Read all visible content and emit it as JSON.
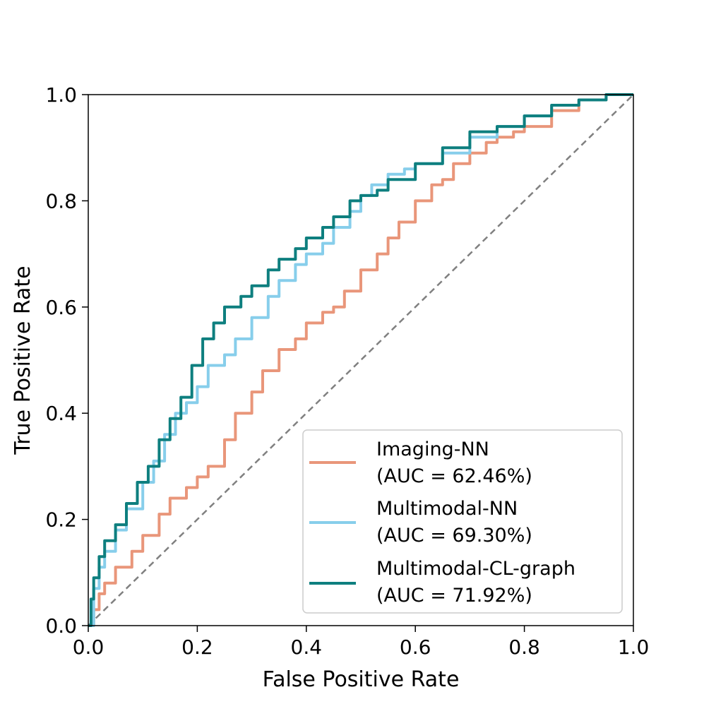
{
  "chart_data": {
    "type": "line",
    "title": "",
    "xlabel": "False Positive Rate",
    "ylabel": "True Positive Rate",
    "xlim": [
      0.0,
      1.0
    ],
    "ylim": [
      0.0,
      1.0
    ],
    "xticks": [
      "0.0",
      "0.2",
      "0.4",
      "0.6",
      "0.8",
      "1.0"
    ],
    "yticks": [
      "0.0",
      "0.2",
      "0.4",
      "0.6",
      "0.8",
      "1.0"
    ],
    "grid": false,
    "legend_position": "lower-right",
    "series": [
      {
        "name": "Imaging-NN",
        "auc_label": "(AUC = 62.46%)",
        "color": "#e9967a",
        "x": [
          0,
          0.01,
          0.02,
          0.03,
          0.05,
          0.08,
          0.1,
          0.13,
          0.15,
          0.18,
          0.2,
          0.22,
          0.25,
          0.27,
          0.3,
          0.32,
          0.35,
          0.38,
          0.4,
          0.43,
          0.45,
          0.47,
          0.5,
          0.53,
          0.55,
          0.57,
          0.6,
          0.63,
          0.65,
          0.67,
          0.7,
          0.73,
          0.75,
          0.78,
          0.8,
          0.85,
          0.9,
          0.95,
          1.0
        ],
        "y": [
          0,
          0.03,
          0.06,
          0.08,
          0.11,
          0.14,
          0.17,
          0.21,
          0.24,
          0.26,
          0.28,
          0.3,
          0.35,
          0.4,
          0.44,
          0.48,
          0.52,
          0.54,
          0.57,
          0.59,
          0.6,
          0.63,
          0.67,
          0.7,
          0.73,
          0.76,
          0.8,
          0.83,
          0.84,
          0.87,
          0.89,
          0.91,
          0.92,
          0.93,
          0.94,
          0.97,
          0.99,
          1.0,
          1.0
        ]
      },
      {
        "name": "Multimodal-NN",
        "auc_label": "(AUC = 69.30%)",
        "color": "#87ceeb",
        "x": [
          0,
          0.01,
          0.02,
          0.03,
          0.05,
          0.07,
          0.1,
          0.12,
          0.14,
          0.16,
          0.18,
          0.2,
          0.22,
          0.25,
          0.27,
          0.3,
          0.33,
          0.35,
          0.38,
          0.4,
          0.43,
          0.45,
          0.48,
          0.5,
          0.52,
          0.55,
          0.58,
          0.6,
          0.65,
          0.7,
          0.75,
          0.8,
          0.85,
          0.9,
          0.95,
          1.0
        ],
        "y": [
          0,
          0.07,
          0.11,
          0.14,
          0.18,
          0.22,
          0.27,
          0.31,
          0.36,
          0.4,
          0.42,
          0.45,
          0.49,
          0.51,
          0.54,
          0.58,
          0.62,
          0.65,
          0.68,
          0.7,
          0.72,
          0.75,
          0.78,
          0.81,
          0.83,
          0.85,
          0.86,
          0.87,
          0.89,
          0.92,
          0.94,
          0.96,
          0.98,
          0.99,
          1.0,
          1.0
        ]
      },
      {
        "name": "Multimodal-CL-graph",
        "auc_label": "(AUC = 71.92%)",
        "color": "#0e7f7f",
        "x": [
          0,
          0.005,
          0.01,
          0.02,
          0.03,
          0.05,
          0.07,
          0.09,
          0.11,
          0.13,
          0.15,
          0.17,
          0.19,
          0.21,
          0.23,
          0.25,
          0.28,
          0.3,
          0.33,
          0.35,
          0.38,
          0.4,
          0.43,
          0.45,
          0.48,
          0.5,
          0.53,
          0.55,
          0.6,
          0.65,
          0.7,
          0.75,
          0.8,
          0.85,
          0.9,
          0.95,
          1.0
        ],
        "y": [
          0,
          0.05,
          0.09,
          0.13,
          0.16,
          0.19,
          0.23,
          0.27,
          0.3,
          0.35,
          0.39,
          0.43,
          0.49,
          0.54,
          0.57,
          0.6,
          0.62,
          0.64,
          0.67,
          0.69,
          0.71,
          0.73,
          0.75,
          0.77,
          0.8,
          0.81,
          0.82,
          0.84,
          0.87,
          0.9,
          0.93,
          0.94,
          0.96,
          0.98,
          0.99,
          1.0,
          1.0
        ]
      }
    ],
    "reference_line": {
      "style": "dashed",
      "color": "#808080",
      "x": [
        0,
        1
      ],
      "y": [
        0,
        1
      ]
    }
  }
}
